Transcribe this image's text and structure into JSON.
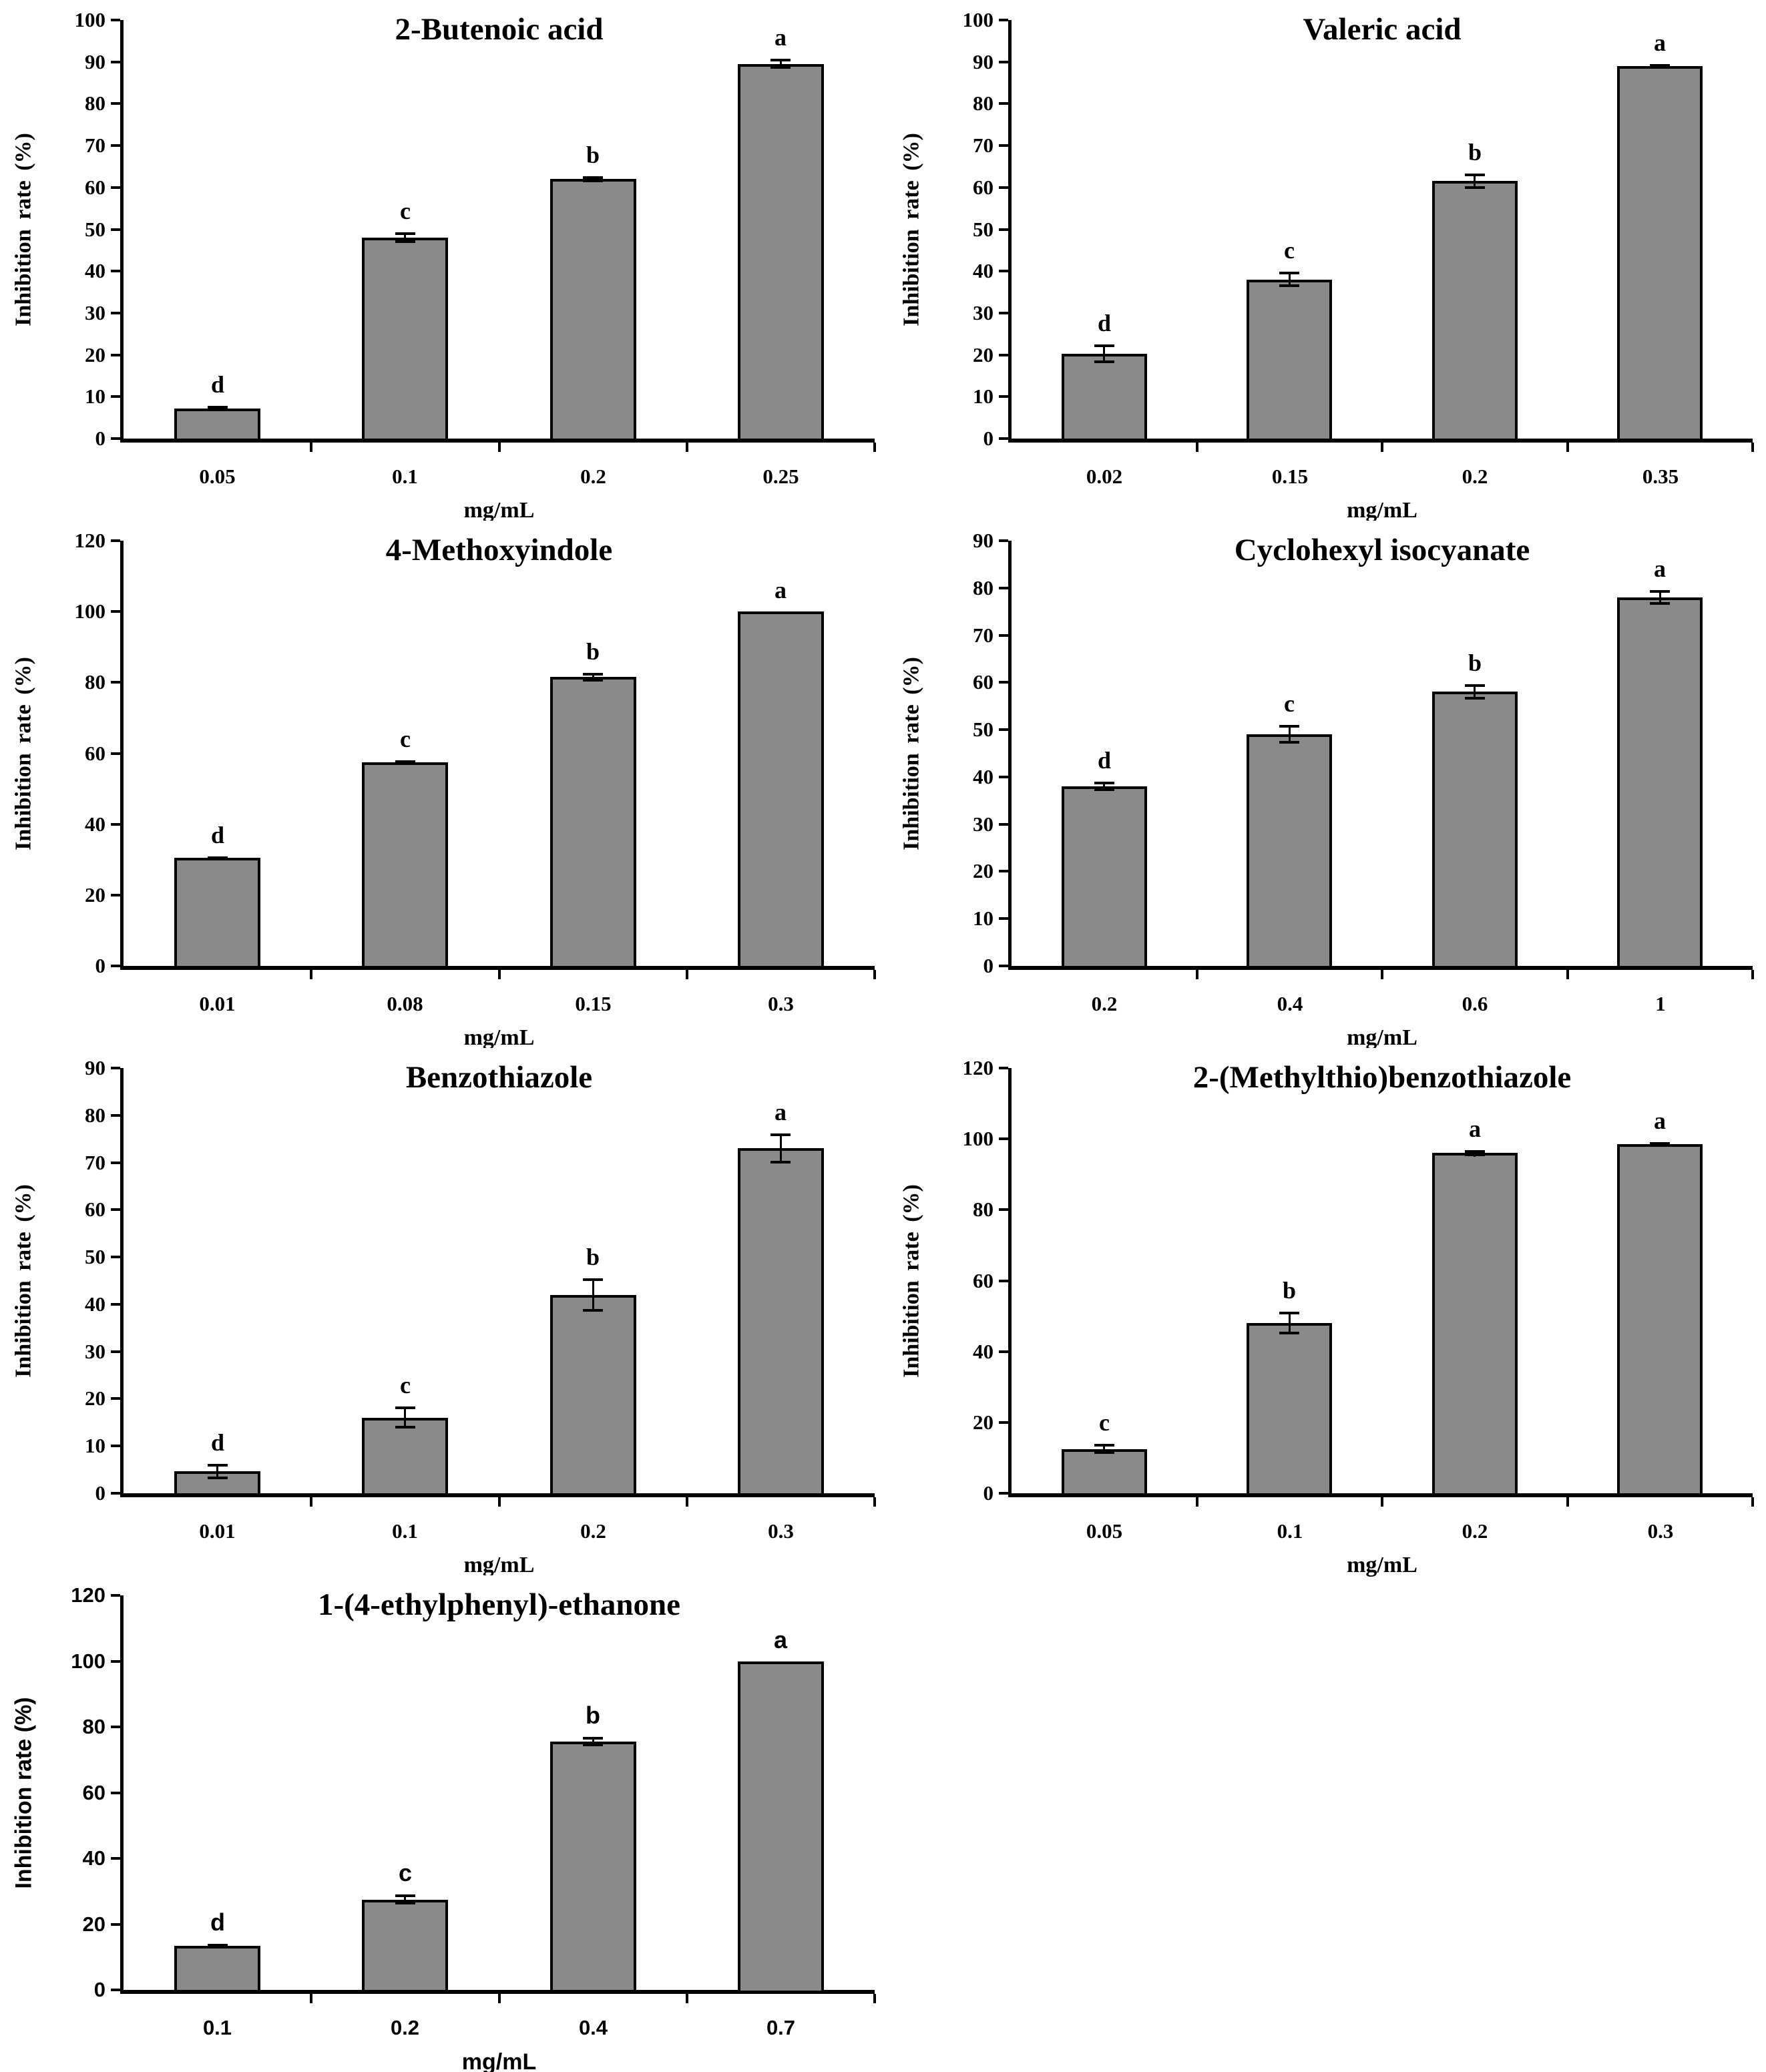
{
  "figure": {
    "bar_color": "#8a8a8a",
    "axis_color": "#000000",
    "background": "#ffffff"
  },
  "chart_data": [
    {
      "type": "bar",
      "title": "2-Butenoic acid",
      "categories": [
        "0.05",
        "0.1",
        "0.2",
        "0.25"
      ],
      "values": [
        7.2,
        48,
        62,
        89.5
      ],
      "errors": [
        0.6,
        1.3,
        0.7,
        1.2
      ],
      "letters": [
        "d",
        "c",
        "b",
        "a"
      ],
      "xlabel": "mg/mL",
      "ylabel": "Inhibition rate (%)",
      "ylim": [
        0,
        100
      ],
      "ytick_step": 10,
      "grid": "off",
      "label_style": "serif"
    },
    {
      "type": "bar",
      "title": "Valeric acid",
      "categories": [
        "0.02",
        "0.15",
        "0.2",
        "0.35"
      ],
      "values": [
        20.3,
        38,
        61.5,
        89
      ],
      "errors": [
        2.2,
        1.8,
        1.8,
        0.5
      ],
      "letters": [
        "d",
        "c",
        "b",
        "a"
      ],
      "xlabel": "mg/mL",
      "ylabel": "Inhibition rate (%)",
      "ylim": [
        0,
        100
      ],
      "ytick_step": 10,
      "grid": "off",
      "label_style": "serif"
    },
    {
      "type": "bar",
      "title": "4-Methoxyindole",
      "categories": [
        "0.01",
        "0.08",
        "0.15",
        "0.3"
      ],
      "values": [
        30.5,
        57.5,
        81.5,
        100
      ],
      "errors": [
        0.4,
        0.5,
        1.2,
        0
      ],
      "letters": [
        "d",
        "c",
        "b",
        "a"
      ],
      "xlabel": "mg/mL",
      "ylabel": "Inhibition rate (%)",
      "ylim": [
        0,
        120
      ],
      "ytick_step": 20,
      "grid": "off",
      "label_style": "serif"
    },
    {
      "type": "bar",
      "title": "Cyclohexyl isocyanate",
      "categories": [
        "0.2",
        "0.4",
        "0.6",
        "1"
      ],
      "values": [
        38,
        49,
        58,
        78
      ],
      "errors": [
        1.0,
        2.0,
        1.6,
        1.5
      ],
      "letters": [
        "d",
        "c",
        "b",
        "a"
      ],
      "xlabel": "mg/mL",
      "ylabel": "Inhibition rate (%)",
      "ylim": [
        0,
        90
      ],
      "ytick_step": 10,
      "grid": "off",
      "label_style": "serif"
    },
    {
      "type": "bar",
      "title": "Benzothiazole",
      "categories": [
        "0.01",
        "0.1",
        "0.2",
        "0.3"
      ],
      "values": [
        4.6,
        16,
        42,
        73
      ],
      "errors": [
        1.6,
        2.3,
        3.5,
        3.2
      ],
      "letters": [
        "d",
        "c",
        "b",
        "a"
      ],
      "xlabel": "mg/mL",
      "ylabel": "Inhibition rate (%)",
      "ylim": [
        0,
        90
      ],
      "ytick_step": 10,
      "grid": "off",
      "label_style": "serif"
    },
    {
      "type": "bar",
      "title": "2-(Methylthio)benzothiazole",
      "categories": [
        "0.05",
        "0.1",
        "0.2",
        "0.3"
      ],
      "values": [
        12.5,
        48,
        96,
        98.5
      ],
      "errors": [
        1.4,
        3.2,
        0.9,
        0.5
      ],
      "letters": [
        "c",
        "b",
        "a",
        "a"
      ],
      "xlabel": "mg/mL",
      "ylabel": "Inhibition rate (%)",
      "ylim": [
        0,
        120
      ],
      "ytick_step": 20,
      "grid": "off",
      "label_style": "serif"
    },
    {
      "type": "bar",
      "title": "1-(4-ethylphenyl)-ethanone",
      "categories": [
        "0.1",
        "0.2",
        "0.4",
        "0.7"
      ],
      "values": [
        13.5,
        27.5,
        75.5,
        100
      ],
      "errors": [
        0.5,
        1.5,
        1.4,
        0
      ],
      "letters": [
        "d",
        "c",
        "b",
        "a"
      ],
      "xlabel": "mg/mL",
      "ylabel": "Inhibition rate (%)",
      "ylim": [
        0,
        120
      ],
      "ytick_step": 20,
      "grid": "off",
      "label_style": "sans"
    }
  ]
}
